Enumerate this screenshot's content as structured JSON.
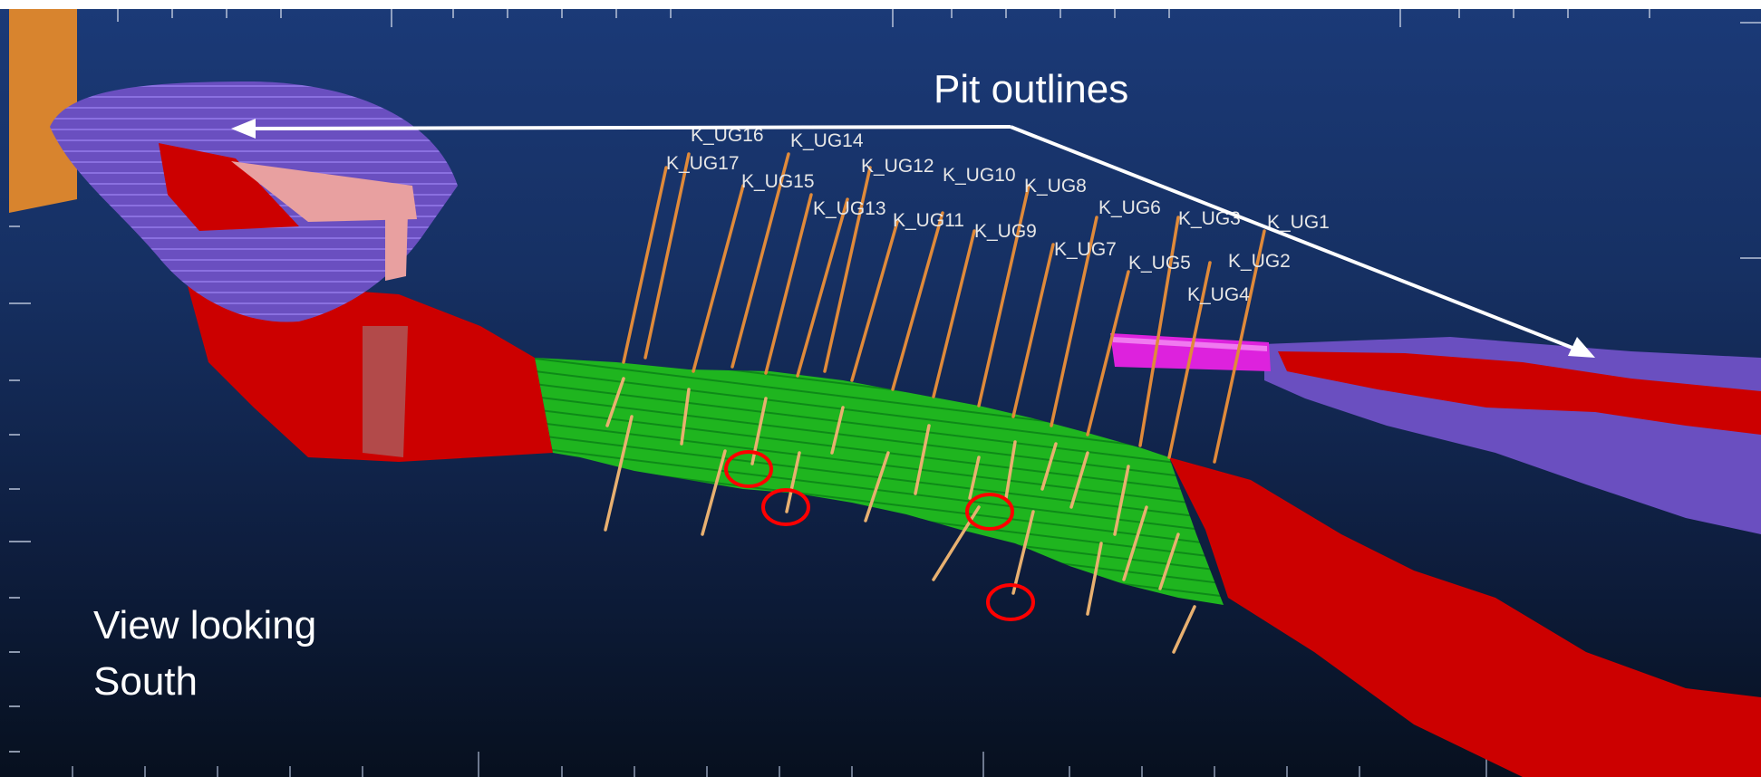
{
  "annotations": {
    "pit_outlines": "Pit outlines",
    "view_line1": "View looking",
    "view_line2": "South"
  },
  "drill_holes": [
    "K_UG1",
    "K_UG2",
    "K_UG3",
    "K_UG4",
    "K_UG5",
    "K_UG6",
    "K_UG7",
    "K_UG8",
    "K_UG9",
    "K_UG10",
    "K_UG11",
    "K_UG12",
    "K_UG13",
    "K_UG14",
    "K_UG15",
    "K_UG16",
    "K_UG17"
  ],
  "colors": {
    "background_top": "#1b3a78",
    "background_bottom": "#07101f",
    "pit_shell": "#6a4fc0",
    "ore_body": "#cc0000",
    "green_zone": "#1fb51f",
    "magenta_zone": "#dd22dd",
    "drill_trace": "#e08a3a",
    "marker_circle": "#ff0000",
    "arrow": "#ffffff",
    "left_block": "#d8842e"
  }
}
